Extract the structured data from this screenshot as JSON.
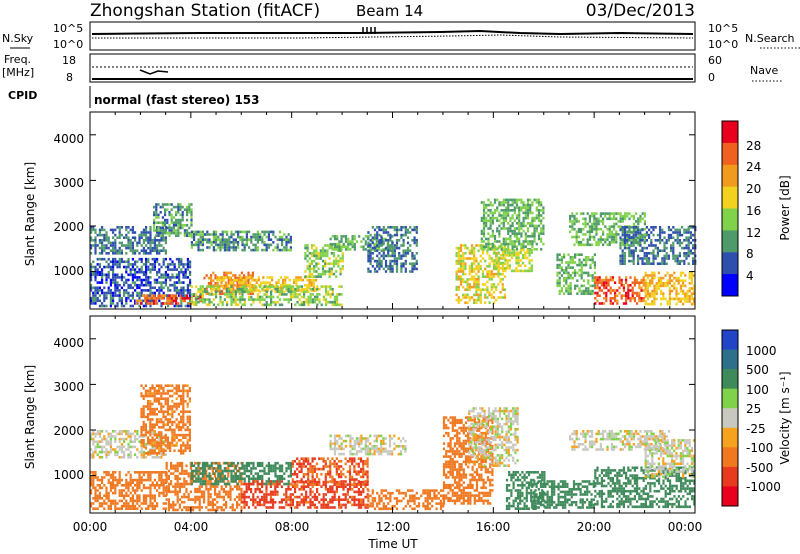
{
  "header": {
    "station": "Zhongshan Station (fitACF)",
    "beam": "Beam 14",
    "date": "03/Dec/2013"
  },
  "nsky_panel": {
    "left_label": "N.Sky",
    "left_ticks": [
      "10^5",
      "10^0"
    ],
    "right_label": "N.Search",
    "right_ticks": [
      "10^5",
      "10^0"
    ]
  },
  "freq_panel": {
    "left_label_line1": "Freq.",
    "left_label_line2": "[MHz]",
    "left_ticks": [
      "18",
      "8"
    ],
    "right_label": "Nave",
    "right_ticks": [
      "60",
      "0"
    ]
  },
  "cpid": {
    "label": "CPID",
    "mode_text": "normal (fast stereo) 153"
  },
  "x_axis": {
    "label": "Time UT",
    "ticks": [
      "00:00",
      "04:00",
      "08:00",
      "12:00",
      "16:00",
      "20:00",
      "00:00"
    ]
  },
  "power_panel": {
    "ylabel": "Slant Range [km]",
    "yticks": [
      "1000",
      "2000",
      "3000",
      "4000"
    ],
    "colorbar_label": "Power [dB]",
    "colorbar_ticks": [
      "4",
      "8",
      "12",
      "16",
      "20",
      "24",
      "28"
    ],
    "colors": [
      "#0000ff",
      "#2f4fae",
      "#4e9a6a",
      "#7fd24a",
      "#f2d21e",
      "#f09a1e",
      "#f0601e",
      "#e8001e"
    ]
  },
  "velocity_panel": {
    "ylabel": "Slant Range [km]",
    "yticks": [
      "1000",
      "2000",
      "3000",
      "4000"
    ],
    "colorbar_label": "Velocity [m s⁻¹]",
    "colorbar_ticks": [
      "1000",
      "500",
      "100",
      "25",
      "-25",
      "-100",
      "-500",
      "-1000"
    ],
    "colors": [
      "#2245c8",
      "#2e6f8a",
      "#3f8a5a",
      "#7fd24a",
      "#c8c8c0",
      "#f6a21e",
      "#f07820",
      "#e83a1e",
      "#e8001e"
    ]
  },
  "chart_data": [
    {
      "type": "heatmap",
      "title": "Power",
      "xlabel": "Time UT",
      "ylabel": "Slant Range [km]",
      "xlim": [
        0,
        24
      ],
      "ylim": [
        180,
        4500
      ],
      "colorbar": {
        "label": "Power [dB]",
        "range": [
          0,
          32
        ]
      },
      "regions": [
        {
          "t0": 0.0,
          "t1": 3.0,
          "r0": 1400,
          "r1": 2000,
          "v": 8
        },
        {
          "t0": 0.0,
          "t1": 4.0,
          "r0": 250,
          "r1": 1300,
          "v": 6
        },
        {
          "t0": 1.8,
          "t1": 4.5,
          "r0": 300,
          "r1": 500,
          "v": 26
        },
        {
          "t0": 2.5,
          "t1": 4.0,
          "r0": 1800,
          "r1": 2500,
          "v": 10
        },
        {
          "t0": 4.0,
          "t1": 8.0,
          "r0": 1500,
          "r1": 1900,
          "v": 10
        },
        {
          "t0": 4.5,
          "t1": 6.5,
          "r0": 500,
          "r1": 1000,
          "v": 24
        },
        {
          "t0": 5.0,
          "t1": 9.0,
          "r0": 600,
          "r1": 900,
          "v": 20
        },
        {
          "t0": 4.0,
          "t1": 10.0,
          "r0": 300,
          "r1": 700,
          "v": 14
        },
        {
          "t0": 8.5,
          "t1": 10.0,
          "r0": 900,
          "r1": 1600,
          "v": 14
        },
        {
          "t0": 9.5,
          "t1": 12.0,
          "r0": 1500,
          "r1": 1800,
          "v": 12
        },
        {
          "t0": 11.0,
          "t1": 13.0,
          "r0": 1000,
          "r1": 2000,
          "v": 8
        },
        {
          "t0": 14.5,
          "t1": 16.5,
          "r0": 300,
          "r1": 1600,
          "v": 18
        },
        {
          "t0": 15.5,
          "t1": 18.0,
          "r0": 1500,
          "r1": 2600,
          "v": 12
        },
        {
          "t0": 16.0,
          "t1": 17.5,
          "r0": 1000,
          "r1": 1500,
          "v": 16
        },
        {
          "t0": 18.5,
          "t1": 20.0,
          "r0": 500,
          "r1": 1400,
          "v": 12
        },
        {
          "t0": 19.0,
          "t1": 22.0,
          "r0": 1600,
          "r1": 2300,
          "v": 12
        },
        {
          "t0": 20.0,
          "t1": 22.0,
          "r0": 300,
          "r1": 900,
          "v": 26
        },
        {
          "t0": 21.0,
          "t1": 24.0,
          "r0": 1200,
          "r1": 2000,
          "v": 8
        },
        {
          "t0": 22.0,
          "t1": 24.0,
          "r0": 300,
          "r1": 1000,
          "v": 20
        }
      ]
    },
    {
      "type": "heatmap",
      "title": "Velocity",
      "xlabel": "Time UT",
      "ylabel": "Slant Range [km]",
      "xlim": [
        0,
        24
      ],
      "ylim": [
        180,
        4500
      ],
      "colorbar": {
        "label": "Velocity [m s⁻¹]",
        "range": [
          -1000,
          1000
        ]
      },
      "regions": [
        {
          "t0": 0.0,
          "t1": 3.0,
          "r0": 1400,
          "r1": 2000,
          "v": 0
        },
        {
          "t0": 0.0,
          "t1": 3.0,
          "r0": 300,
          "r1": 1100,
          "v": -300
        },
        {
          "t0": 2.0,
          "t1": 4.0,
          "r0": 1500,
          "r1": 3000,
          "v": -150
        },
        {
          "t0": 3.0,
          "t1": 6.0,
          "r0": 250,
          "r1": 1300,
          "v": -300
        },
        {
          "t0": 4.0,
          "t1": 8.0,
          "r0": 800,
          "r1": 1300,
          "v": 300
        },
        {
          "t0": 6.0,
          "t1": 11.0,
          "r0": 300,
          "r1": 900,
          "v": -700
        },
        {
          "t0": 8.0,
          "t1": 11.0,
          "r0": 800,
          "r1": 1400,
          "v": -500
        },
        {
          "t0": 9.5,
          "t1": 12.5,
          "r0": 1500,
          "r1": 1900,
          "v": 0
        },
        {
          "t0": 11.0,
          "t1": 14.0,
          "r0": 300,
          "r1": 700,
          "v": -300
        },
        {
          "t0": 14.0,
          "t1": 16.0,
          "r0": 400,
          "r1": 2300,
          "v": -300
        },
        {
          "t0": 15.0,
          "t1": 17.0,
          "r0": 1200,
          "r1": 2500,
          "v": 0
        },
        {
          "t0": 16.5,
          "t1": 18.0,
          "r0": 300,
          "r1": 1100,
          "v": 200
        },
        {
          "t0": 17.5,
          "t1": 20.0,
          "r0": 300,
          "r1": 900,
          "v": 300
        },
        {
          "t0": 19.0,
          "t1": 23.0,
          "r0": 1600,
          "r1": 2000,
          "v": 0
        },
        {
          "t0": 20.0,
          "t1": 24.0,
          "r0": 300,
          "r1": 1200,
          "v": 300
        },
        {
          "t0": 22.0,
          "t1": 24.0,
          "r0": 1000,
          "r1": 1800,
          "v": 0
        }
      ]
    }
  ]
}
